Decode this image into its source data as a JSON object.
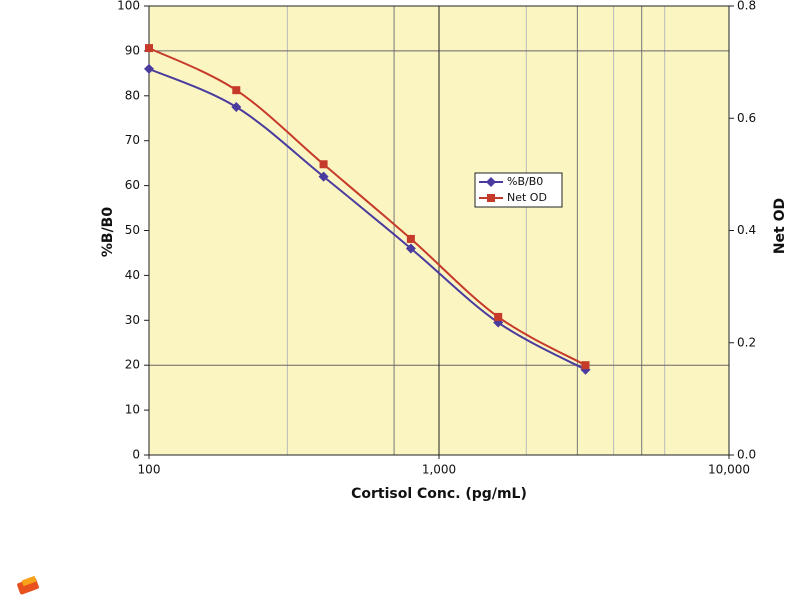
{
  "chart_data": {
    "type": "line",
    "x_label": "Cortisol Conc. (pg/mL)",
    "y_label": "%B/B0",
    "y2_label": "Net OD",
    "x": [
      100,
      200,
      400,
      800,
      1600,
      3200
    ],
    "xlim": [
      100,
      10000
    ],
    "x_log": true,
    "xticks": [
      100,
      {
        "value": 1000,
        "label": "1,000"
      },
      {
        "value": 10000,
        "label": "10,000"
      }
    ],
    "x_minor_grid": [
      300,
      700,
      2000,
      3000,
      4000,
      5000,
      6000
    ],
    "ylim": [
      0,
      100
    ],
    "yticks": [
      0,
      10,
      20,
      30,
      40,
      50,
      60,
      70,
      80,
      90,
      100
    ],
    "y_grid": [
      20,
      90
    ],
    "y2lim": [
      0,
      0.8
    ],
    "y2ticks": [
      {
        "value": 0,
        "label": "0.0"
      },
      0.2,
      0.4,
      0.6,
      0.8
    ],
    "legend": "center-right",
    "series": [
      {
        "name": "%B/B0",
        "color": "#4a3b9e",
        "marker": "diamond",
        "values": [
          86,
          77.5,
          62,
          46,
          29.5,
          19
        ]
      },
      {
        "name": "Net OD",
        "color": "#c63a2a",
        "marker": "square",
        "axis": "y2",
        "values": [
          0.725,
          0.65,
          0.518,
          0.385,
          0.246,
          0.16
        ]
      }
    ]
  }
}
